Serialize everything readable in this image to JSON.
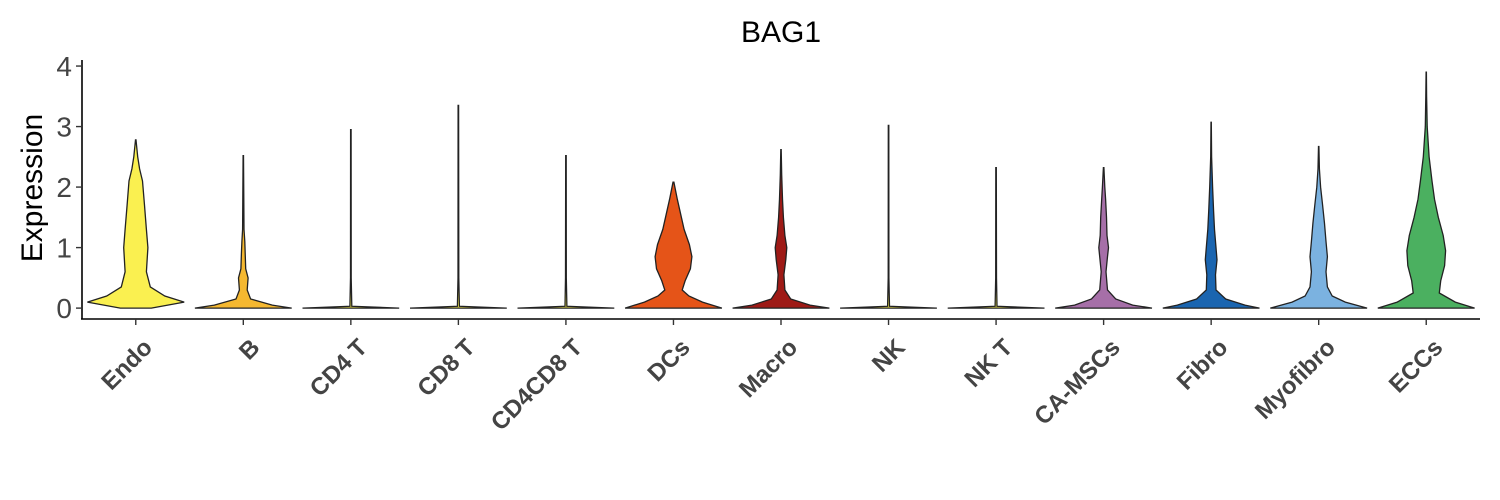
{
  "chart_data": {
    "type": "violin",
    "title": "BAG1",
    "xlabel": "",
    "ylabel": "Expression",
    "ylim": [
      -0.18,
      4.1
    ],
    "yticks": [
      "0",
      "1",
      "2",
      "3",
      "4"
    ],
    "grid": false,
    "legend": "none",
    "categories": [
      "Endo",
      "B",
      "CD4 T",
      "CD8 T",
      "CD4CD8 T",
      "DCs",
      "Macro",
      "NK",
      "NK T",
      "CA-MSCs",
      "Fibro",
      "Myofibro",
      "ECCs"
    ],
    "series": [
      {
        "category": "Endo",
        "max": 2.78,
        "color": "#FAF050",
        "profile": [
          [
            0,
            0.32
          ],
          [
            0.1,
            1.0
          ],
          [
            0.2,
            0.6
          ],
          [
            0.35,
            0.3
          ],
          [
            0.6,
            0.22
          ],
          [
            1.0,
            0.25
          ],
          [
            1.3,
            0.22
          ],
          [
            1.7,
            0.18
          ],
          [
            2.1,
            0.14
          ],
          [
            2.3,
            0.08
          ],
          [
            2.5,
            0.04
          ],
          [
            2.78,
            0.005
          ]
        ]
      },
      {
        "category": "B",
        "max": 2.52,
        "color": "#F5B830",
        "profile": [
          [
            0,
            1.0
          ],
          [
            0.05,
            0.6
          ],
          [
            0.15,
            0.15
          ],
          [
            0.3,
            0.08
          ],
          [
            0.5,
            0.1
          ],
          [
            0.65,
            0.05
          ],
          [
            0.9,
            0.04
          ],
          [
            1.1,
            0.03
          ],
          [
            1.3,
            0.015
          ],
          [
            1.8,
            0.01
          ],
          [
            2.52,
            0.004
          ]
        ]
      },
      {
        "category": "CD4 T",
        "max": 2.95,
        "color": "#FAF050",
        "profile": [
          [
            0,
            1.0
          ],
          [
            0.03,
            0.02
          ],
          [
            0.5,
            0.008
          ],
          [
            2.95,
            0.005
          ]
        ]
      },
      {
        "category": "CD8 T",
        "max": 3.35,
        "color": "#FAF050",
        "profile": [
          [
            0,
            1.0
          ],
          [
            0.03,
            0.02
          ],
          [
            0.5,
            0.008
          ],
          [
            3.35,
            0.005
          ]
        ]
      },
      {
        "category": "CD4CD8 T",
        "max": 2.52,
        "color": "#FAF050",
        "profile": [
          [
            0,
            1.0
          ],
          [
            0.03,
            0.02
          ],
          [
            0.5,
            0.008
          ],
          [
            2.52,
            0.005
          ]
        ]
      },
      {
        "category": "DCs",
        "max": 2.08,
        "color": "#E55418",
        "profile": [
          [
            0,
            1.0
          ],
          [
            0.1,
            0.6
          ],
          [
            0.2,
            0.32
          ],
          [
            0.3,
            0.18
          ],
          [
            0.45,
            0.24
          ],
          [
            0.65,
            0.35
          ],
          [
            0.85,
            0.38
          ],
          [
            1.05,
            0.33
          ],
          [
            1.3,
            0.22
          ],
          [
            1.55,
            0.15
          ],
          [
            1.8,
            0.08
          ],
          [
            2.08,
            0.01
          ]
        ]
      },
      {
        "category": "Macro",
        "max": 2.62,
        "color": "#9E1A16",
        "profile": [
          [
            0,
            1.0
          ],
          [
            0.05,
            0.6
          ],
          [
            0.15,
            0.2
          ],
          [
            0.3,
            0.08
          ],
          [
            0.55,
            0.06
          ],
          [
            0.8,
            0.1
          ],
          [
            1.0,
            0.12
          ],
          [
            1.2,
            0.08
          ],
          [
            1.5,
            0.05
          ],
          [
            1.8,
            0.03
          ],
          [
            2.2,
            0.015
          ],
          [
            2.62,
            0.004
          ]
        ]
      },
      {
        "category": "NK",
        "max": 3.02,
        "color": "#FAF050",
        "profile": [
          [
            0,
            1.0
          ],
          [
            0.03,
            0.02
          ],
          [
            0.5,
            0.008
          ],
          [
            3.02,
            0.005
          ]
        ]
      },
      {
        "category": "NK T",
        "max": 2.32,
        "color": "#FAF050",
        "profile": [
          [
            0,
            1.0
          ],
          [
            0.03,
            0.02
          ],
          [
            0.5,
            0.008
          ],
          [
            2.32,
            0.005
          ]
        ]
      },
      {
        "category": "CA-MSCs",
        "max": 2.32,
        "color": "#A66FA8",
        "profile": [
          [
            0,
            1.0
          ],
          [
            0.05,
            0.6
          ],
          [
            0.15,
            0.25
          ],
          [
            0.3,
            0.08
          ],
          [
            0.6,
            0.05
          ],
          [
            0.85,
            0.08
          ],
          [
            1.0,
            0.1
          ],
          [
            1.2,
            0.07
          ],
          [
            1.5,
            0.06
          ],
          [
            1.8,
            0.04
          ],
          [
            2.0,
            0.025
          ],
          [
            2.32,
            0.005
          ]
        ]
      },
      {
        "category": "Fibro",
        "max": 3.07,
        "color": "#1A65B0",
        "profile": [
          [
            0,
            1.0
          ],
          [
            0.05,
            0.7
          ],
          [
            0.15,
            0.3
          ],
          [
            0.3,
            0.1
          ],
          [
            0.55,
            0.09
          ],
          [
            0.8,
            0.12
          ],
          [
            1.0,
            0.1
          ],
          [
            1.3,
            0.07
          ],
          [
            1.6,
            0.05
          ],
          [
            2.0,
            0.03
          ],
          [
            2.5,
            0.01
          ],
          [
            3.07,
            0.004
          ]
        ]
      },
      {
        "category": "Myofibro",
        "max": 2.67,
        "color": "#7BB2E0",
        "profile": [
          [
            0,
            1.0
          ],
          [
            0.1,
            0.55
          ],
          [
            0.2,
            0.28
          ],
          [
            0.35,
            0.18
          ],
          [
            0.6,
            0.15
          ],
          [
            0.85,
            0.18
          ],
          [
            1.1,
            0.15
          ],
          [
            1.4,
            0.12
          ],
          [
            1.7,
            0.08
          ],
          [
            2.0,
            0.04
          ],
          [
            2.3,
            0.015
          ],
          [
            2.67,
            0.004
          ]
        ]
      },
      {
        "category": "ECCs",
        "max": 3.9,
        "color": "#4BB060",
        "profile": [
          [
            0,
            1.0
          ],
          [
            0.1,
            0.6
          ],
          [
            0.25,
            0.27
          ],
          [
            0.45,
            0.3
          ],
          [
            0.7,
            0.38
          ],
          [
            0.95,
            0.4
          ],
          [
            1.2,
            0.35
          ],
          [
            1.5,
            0.25
          ],
          [
            1.8,
            0.17
          ],
          [
            2.1,
            0.12
          ],
          [
            2.5,
            0.06
          ],
          [
            3.0,
            0.02
          ],
          [
            3.5,
            0.008
          ],
          [
            3.9,
            0.003
          ]
        ]
      }
    ]
  }
}
